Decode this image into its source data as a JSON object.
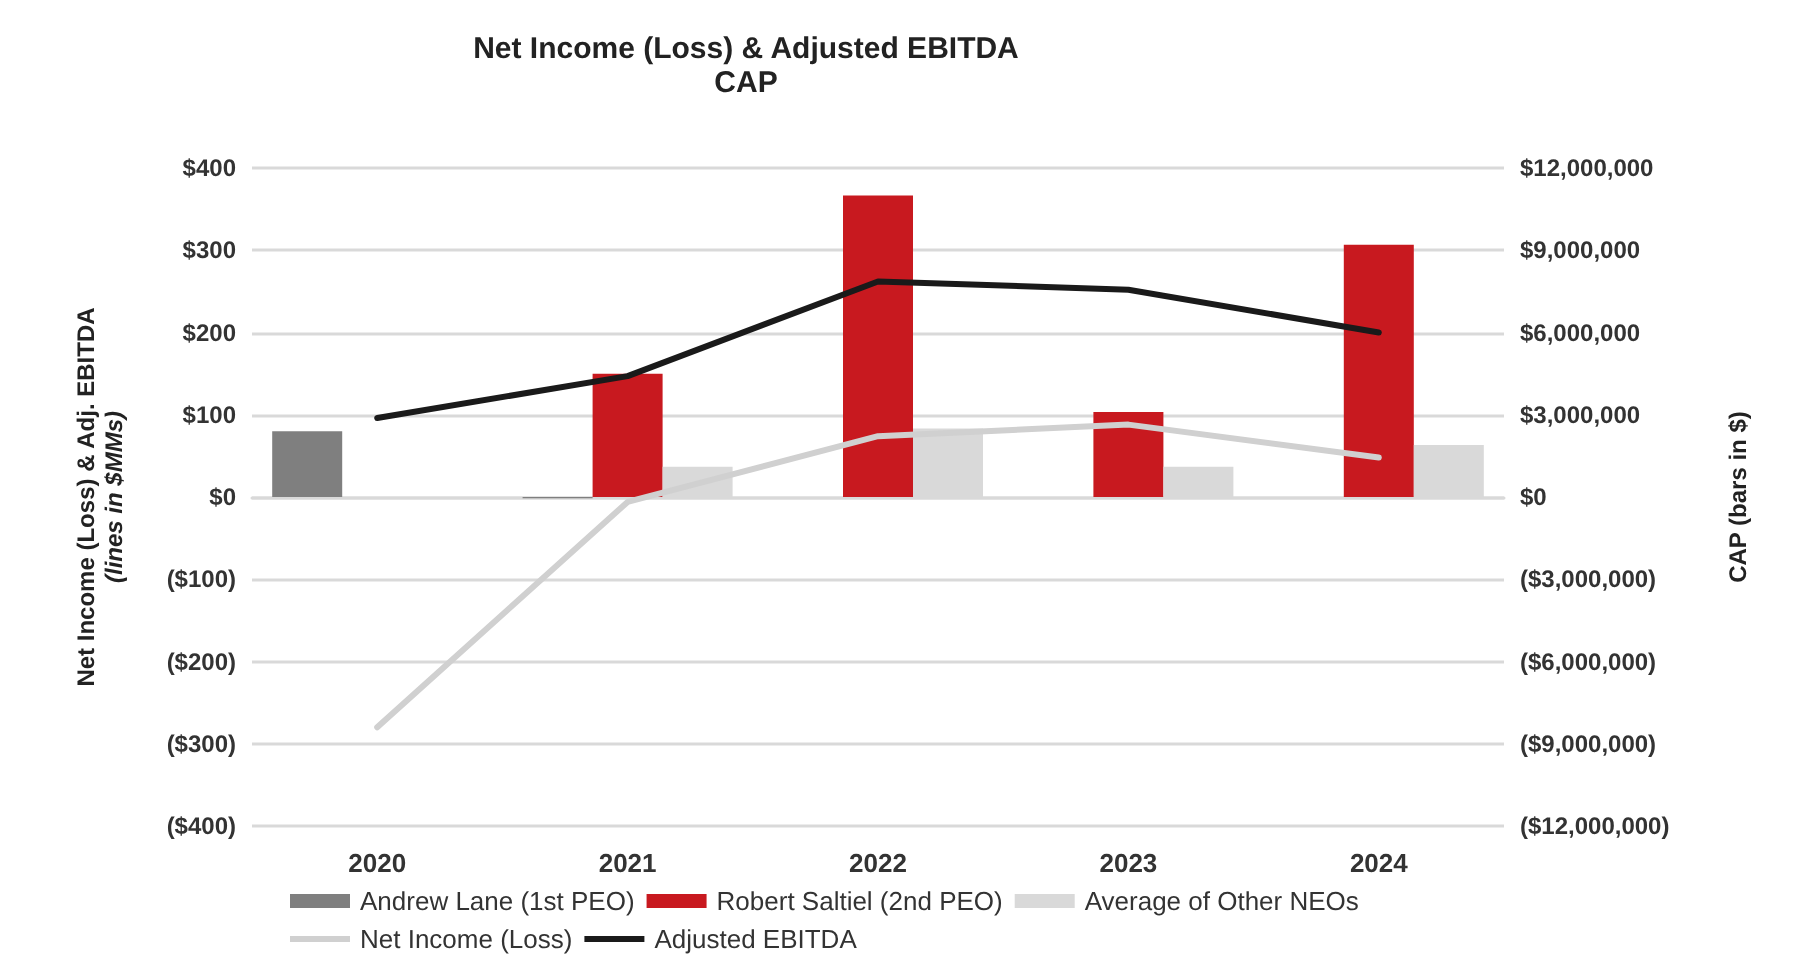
{
  "chart_data": {
    "type": "bar",
    "title": "Net Income (Loss) & Adjusted EBITDA",
    "subtitle": "CAP",
    "ylabel": "Net Income (Loss) & Adj. EBITDA\n(lines in $MMs)",
    "y2label": "CAP (bars in $)",
    "categories": [
      "2020",
      "2021",
      "2022",
      "2023",
      "2024"
    ],
    "series": [
      {
        "name": "Andrew Lane (1st PEO)",
        "axis": "y2",
        "color": "#7f7f7f",
        "values": [
          2400000,
          -50000,
          null,
          null,
          null
        ]
      },
      {
        "name": "Robert Saltiel (2nd PEO)",
        "axis": "y2",
        "color": "#c8191f",
        "values": [
          null,
          4500000,
          11000000,
          3100000,
          9200000
        ]
      },
      {
        "name": "Average of Other NEOs",
        "axis": "y2",
        "color": "#d9d9d9",
        "values": [
          null,
          1100000,
          2500000,
          1100000,
          1900000
        ]
      },
      {
        "name": "Net Income (Loss)",
        "type": "line",
        "axis": "y",
        "color": "#d0d0d0",
        "values": [
          -280,
          -6,
          74,
          88,
          48
        ]
      },
      {
        "name": "Adjusted EBITDA",
        "type": "line",
        "axis": "y",
        "color": "#1a1a1a",
        "values": [
          96,
          147,
          262,
          252,
          200
        ]
      }
    ],
    "ylim": [
      -400,
      400
    ],
    "yticks": [
      {
        "value": -400,
        "label": "($400)"
      },
      {
        "value": -300,
        "label": "($300)"
      },
      {
        "value": -200,
        "label": "($200)"
      },
      {
        "value": -100,
        "label": "($100)"
      },
      {
        "value": 0,
        "label": "$0"
      },
      {
        "value": 100,
        "label": "$100"
      },
      {
        "value": 200,
        "label": "$200"
      },
      {
        "value": 300,
        "label": "$300"
      },
      {
        "value": 400,
        "label": "$400"
      }
    ],
    "y2lim": [
      -12000000,
      12000000
    ],
    "y2ticks": [
      {
        "value": -12000000,
        "label": "($12,000,000)"
      },
      {
        "value": -9000000,
        "label": "($9,000,000)"
      },
      {
        "value": -6000000,
        "label": "($6,000,000)"
      },
      {
        "value": -3000000,
        "label": "($3,000,000)"
      },
      {
        "value": 0,
        "label": "$0"
      },
      {
        "value": 3000000,
        "label": "$3,000,000"
      },
      {
        "value": 6000000,
        "label": "$6,000,000"
      },
      {
        "value": 9000000,
        "label": "$9,000,000"
      },
      {
        "value": 12000000,
        "label": "$12,000,000"
      }
    ],
    "grid": "y",
    "legend": "bottom",
    "marker": "none",
    "line_style": "solid"
  }
}
